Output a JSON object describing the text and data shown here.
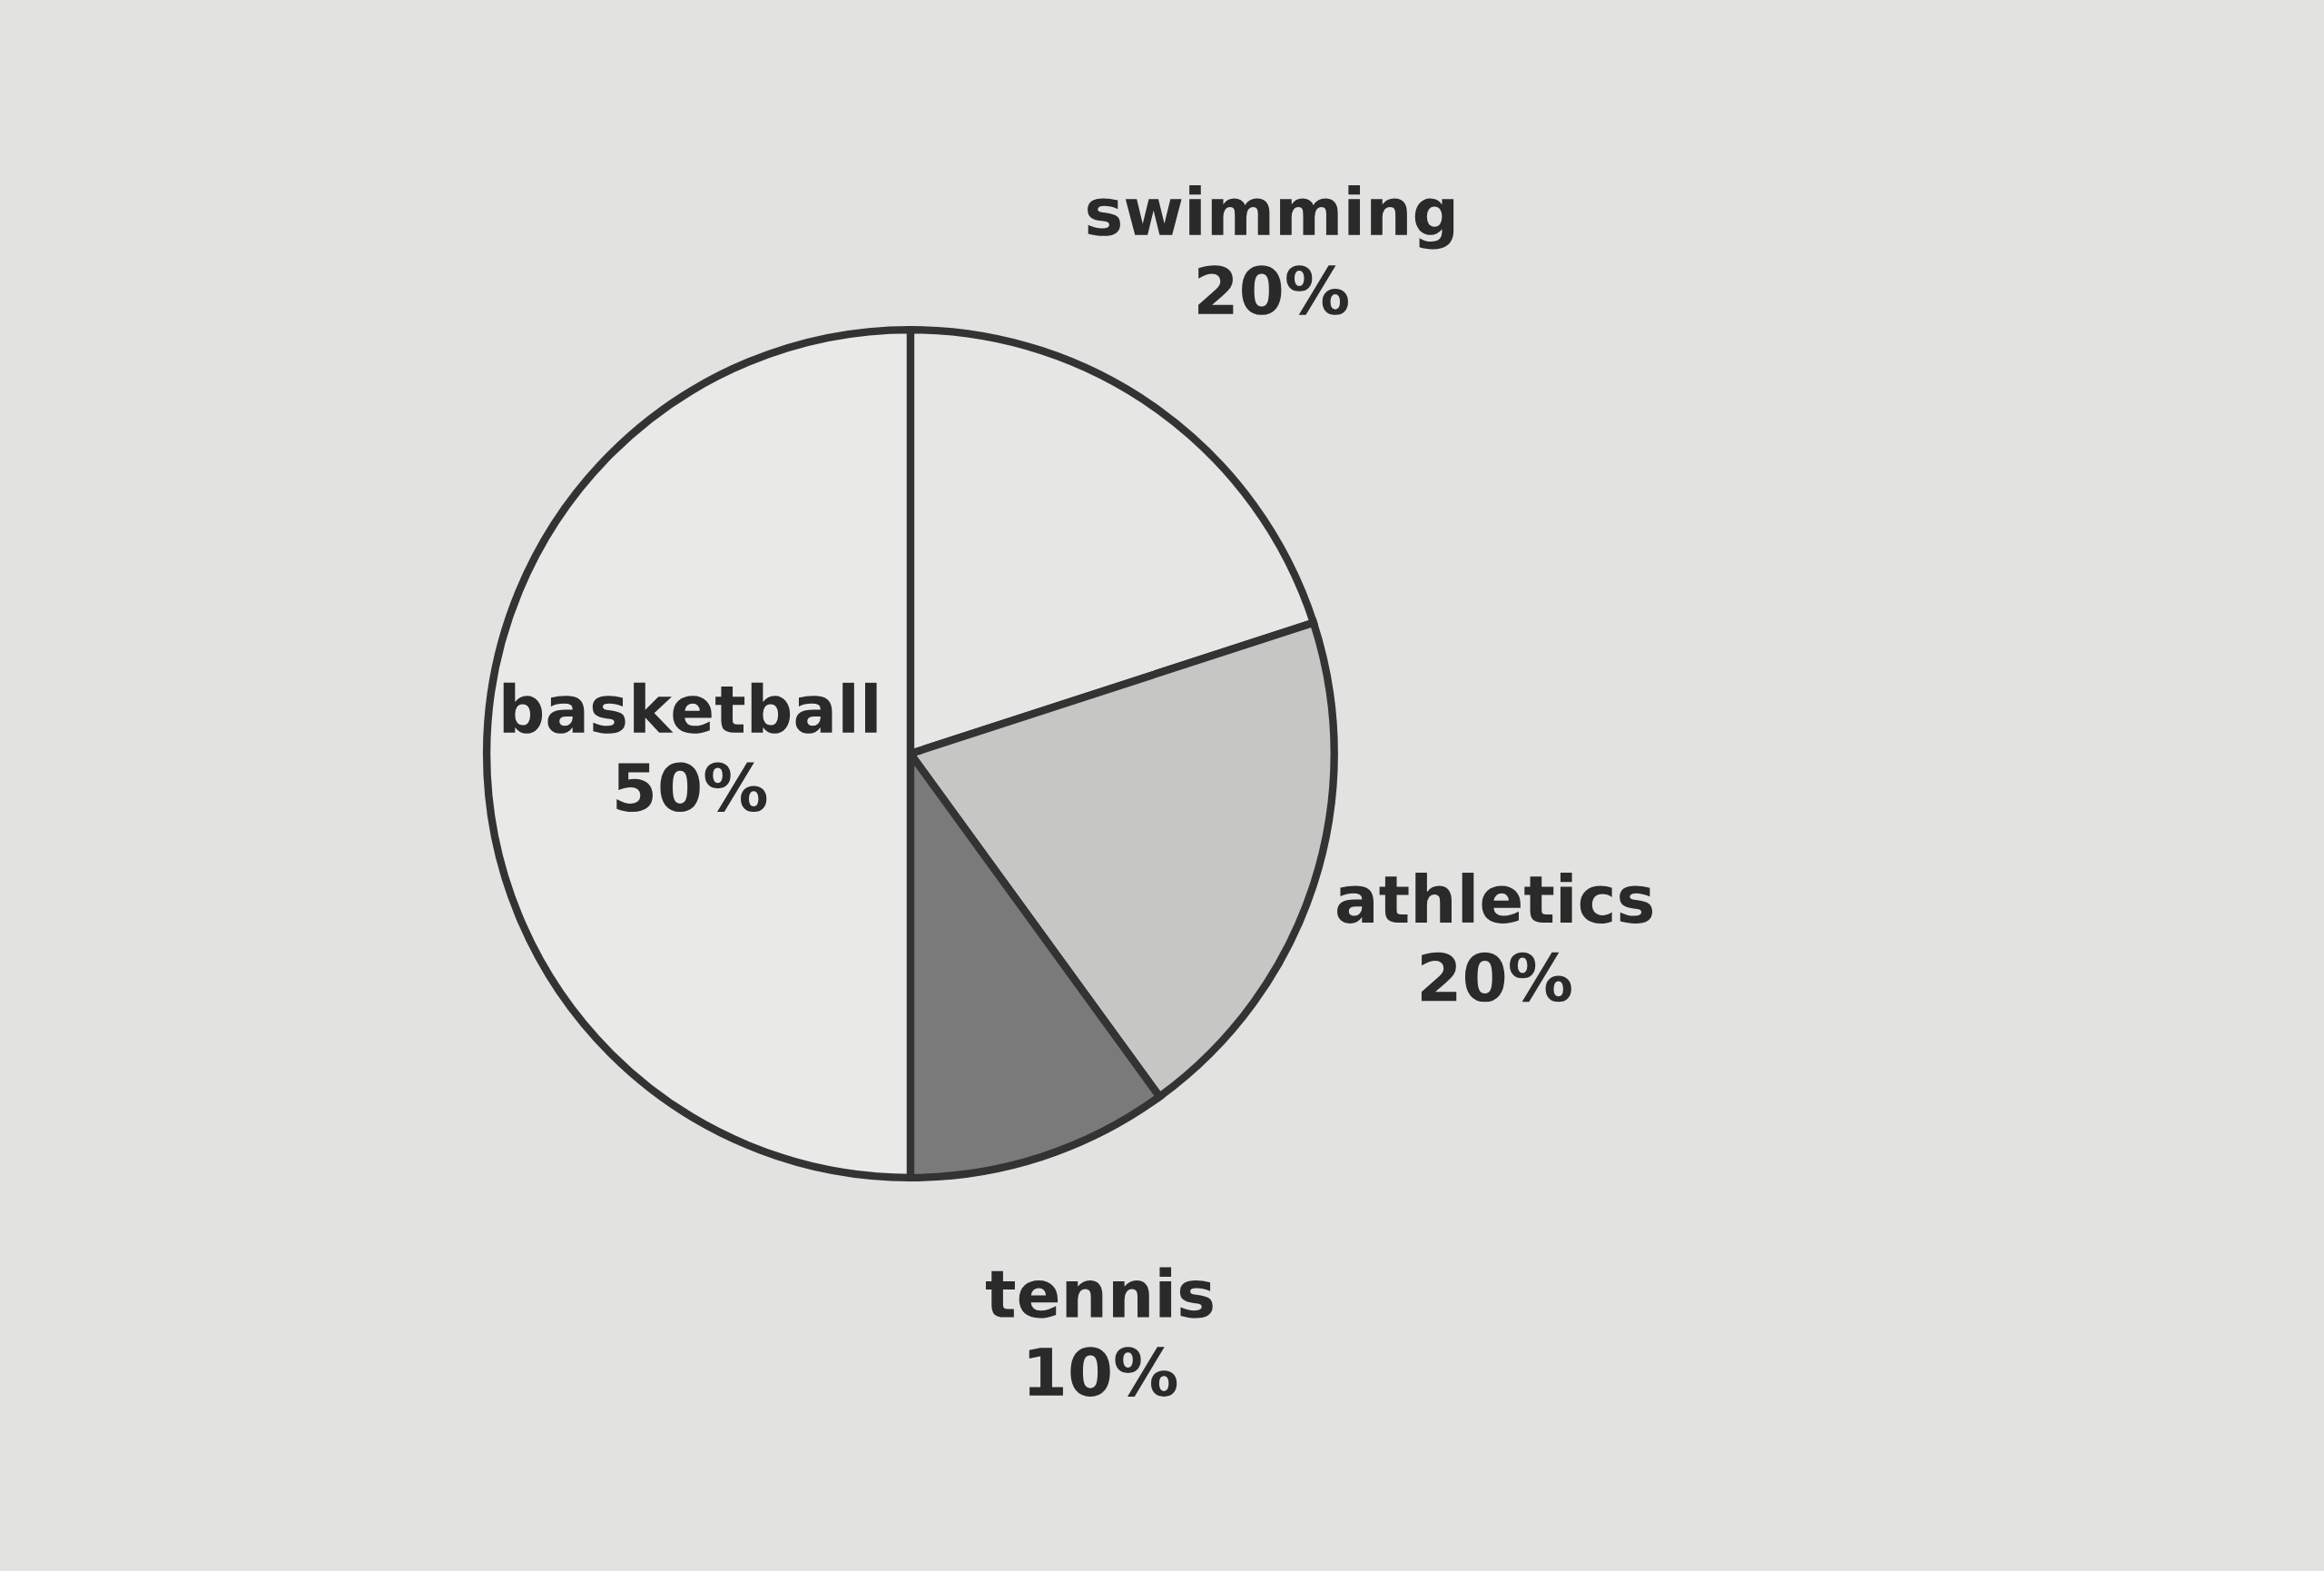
{
  "chart_data": {
    "type": "pie",
    "categories": [
      "swimming",
      "athletics",
      "tennis",
      "basketball"
    ],
    "values": [
      20,
      20,
      10,
      50
    ],
    "colors": [
      "#e6e6e4",
      "#c6c6c4",
      "#7a7a7a",
      "#e9e9e7"
    ],
    "value_labels": [
      "20%",
      "20%",
      "10%",
      "50%"
    ]
  }
}
